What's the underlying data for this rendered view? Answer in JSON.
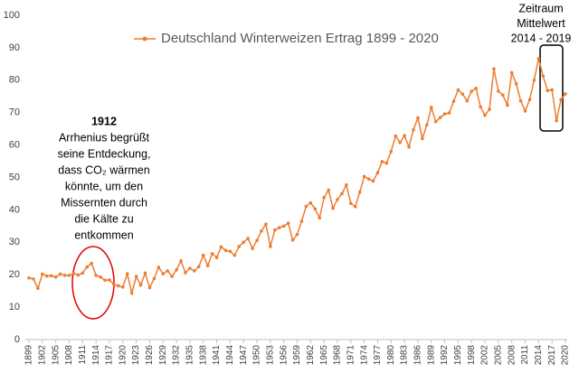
{
  "chart_data": {
    "type": "line",
    "categories": [
      "1899",
      null,
      null,
      "1902",
      null,
      null,
      "1905",
      null,
      null,
      "1908",
      null,
      null,
      "1911",
      null,
      null,
      "1914",
      null,
      null,
      "1917",
      null,
      null,
      "1920",
      null,
      null,
      "1923",
      null,
      null,
      "1926",
      null,
      null,
      "1929",
      null,
      null,
      "1932",
      null,
      null,
      "1935",
      null,
      null,
      "1938",
      null,
      null,
      "1941",
      null,
      null,
      "1944",
      null,
      null,
      "1947",
      null,
      null,
      "1950",
      null,
      null,
      "1953",
      null,
      null,
      "1956",
      null,
      null,
      "1959",
      null,
      null,
      "1962",
      null,
      null,
      "1965",
      null,
      null,
      "1968",
      null,
      null,
      "1971",
      null,
      null,
      "1974",
      null,
      null,
      "1977",
      null,
      null,
      "1980",
      null,
      null,
      "1983",
      null,
      null,
      "1986",
      null,
      null,
      "1989",
      null,
      null,
      "1992",
      null,
      null,
      "1995",
      null,
      null,
      "1998",
      null,
      null,
      "2002",
      null,
      null,
      "2005",
      null,
      null,
      "2008",
      null,
      null,
      "2011",
      null,
      null,
      "2014",
      null,
      null,
      "2017",
      null,
      null,
      "2020"
    ],
    "series": [
      {
        "name": "Deutschland Winterweizen Ertrag 1899 - 2020",
        "color": "#ED7D31",
        "values": [
          19.0,
          18.7,
          15.8,
          20.2,
          19.6,
          19.7,
          19.3,
          20.2,
          19.8,
          19.8,
          20.4,
          19.9,
          20.5,
          22.4,
          23.5,
          19.8,
          19.3,
          18.3,
          18.4,
          17.0,
          16.6,
          16.2,
          20.3,
          14.3,
          19.5,
          16.8,
          20.5,
          16.0,
          18.8,
          22.3,
          20.3,
          21.2,
          19.5,
          21.5,
          24.3,
          20.6,
          22.0,
          21.2,
          22.5,
          26.0,
          22.8,
          26.5,
          25.3,
          28.6,
          27.5,
          27.2,
          26.0,
          28.7,
          30.0,
          31.2,
          28.1,
          30.6,
          33.5,
          35.6,
          28.7,
          33.8,
          34.5,
          35.0,
          35.9,
          30.7,
          32.4,
          36.5,
          41.1,
          42.2,
          40.3,
          37.5,
          43.8,
          46.1,
          40.5,
          43.2,
          45.0,
          47.7,
          42.0,
          41.0,
          45.5,
          50.3,
          49.5,
          48.9,
          51.5,
          54.9,
          54.4,
          58.0,
          62.8,
          60.8,
          62.9,
          59.4,
          64.7,
          68.4,
          62.0,
          66.2,
          71.6,
          67.2,
          68.5,
          69.6,
          69.9,
          73.5,
          77.0,
          75.7,
          73.6,
          76.6,
          77.5,
          71.8,
          69.2,
          71.0,
          83.5,
          76.6,
          75.4,
          72.3,
          82.3,
          78.9,
          73.6,
          70.5,
          74.0,
          80.0,
          86.7,
          81.3,
          76.8,
          77.0,
          67.5,
          74.0,
          75.8
        ]
      }
    ],
    "ylim": [
      0,
      100
    ],
    "yticks": [
      0,
      10,
      20,
      30,
      40,
      50,
      60,
      70,
      80,
      90,
      100
    ],
    "grid": false,
    "annotations": [
      {
        "title": "1912",
        "lines": [
          "Arrhenius begrüßt",
          "seine Entdeckung,",
          "dass CO₂ wärmen",
          "könnte, um den",
          "Missernten durch",
          "die Kälte zu",
          "entkommen"
        ]
      },
      {
        "lines": [
          "Zeitraum",
          "Mittelwert",
          "2014 - 2019"
        ]
      }
    ]
  }
}
